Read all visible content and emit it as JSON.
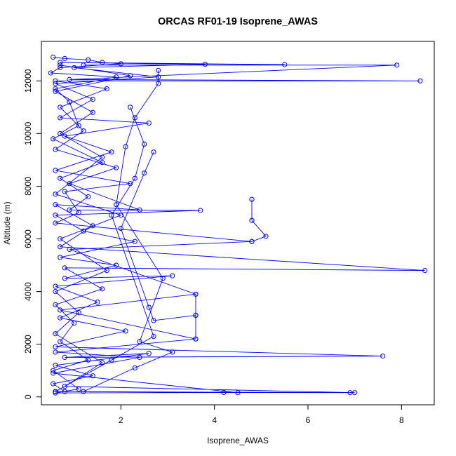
{
  "chart_data": {
    "type": "line",
    "title": "ORCAS RF01-19 Isoprene_AWAS",
    "xlabel": "Isoprene_AWAS",
    "ylabel": "Altitude (m)",
    "xlim": [
      0.3,
      8.7
    ],
    "ylim": [
      -300,
      13500
    ],
    "xticks": [
      2,
      4,
      6,
      8
    ],
    "yticks": [
      0,
      2000,
      4000,
      6000,
      8000,
      10000,
      12000
    ],
    "grid": false,
    "legend": "none",
    "color": "#0000ff",
    "series": [
      {
        "points": [
          [
            0.55,
            12900
          ],
          [
            0.8,
            12850
          ],
          [
            1.3,
            12800
          ],
          [
            1.6,
            12700
          ],
          [
            2.0,
            12650
          ],
          [
            0.7,
            12500
          ],
          [
            0.5,
            12300
          ],
          [
            1.9,
            12150
          ],
          [
            0.6,
            11700
          ],
          [
            0.9,
            11200
          ],
          [
            1.1,
            10300
          ],
          [
            0.55,
            9800
          ],
          [
            1.6,
            8900
          ],
          [
            0.7,
            8300
          ],
          [
            1.3,
            7600
          ],
          [
            0.9,
            7100
          ],
          [
            3.7,
            7080
          ],
          [
            0.6,
            6900
          ],
          [
            1.2,
            6300
          ],
          [
            2.3,
            5900
          ],
          [
            0.7,
            5300
          ],
          [
            1.9,
            5000
          ],
          [
            0.8,
            4500
          ],
          [
            3.1,
            4600
          ],
          [
            0.6,
            4200
          ],
          [
            1.5,
            3600
          ],
          [
            0.7,
            3000
          ],
          [
            2.1,
            2500
          ],
          [
            0.6,
            1900
          ],
          [
            7.6,
            1550
          ],
          [
            0.8,
            1500
          ],
          [
            2.6,
            1650
          ],
          [
            0.6,
            1200
          ],
          [
            1.4,
            800
          ],
          [
            0.55,
            500
          ],
          [
            0.8,
            200
          ],
          [
            6.9,
            160
          ],
          [
            4.2,
            170
          ],
          [
            0.6,
            150
          ],
          [
            1.1,
            300
          ],
          [
            0.55,
            1000
          ],
          [
            1.3,
            1400
          ],
          [
            0.7,
            2100
          ],
          [
            1.0,
            2800
          ],
          [
            0.6,
            3500
          ],
          [
            1.6,
            4100
          ],
          [
            0.8,
            4900
          ],
          [
            8.5,
            4800
          ],
          [
            0.7,
            5700
          ],
          [
            1.4,
            6500
          ],
          [
            0.6,
            7300
          ],
          [
            2.4,
            7100
          ],
          [
            0.9,
            8100
          ],
          [
            1.9,
            8700
          ],
          [
            0.6,
            9400
          ],
          [
            1.2,
            10100
          ],
          [
            0.7,
            11000
          ],
          [
            1.7,
            11700
          ],
          [
            0.6,
            12000
          ],
          [
            8.4,
            12000
          ],
          [
            0.9,
            12050
          ],
          [
            7.9,
            12600
          ],
          [
            1.2,
            12600
          ],
          [
            5.5,
            12620
          ],
          [
            0.7,
            12700
          ],
          [
            3.8,
            12630
          ],
          [
            1.0,
            12500
          ],
          [
            2.8,
            12150
          ],
          [
            0.6,
            11900
          ],
          [
            1.4,
            11300
          ],
          [
            0.7,
            10600
          ],
          [
            2.6,
            10400
          ],
          [
            0.8,
            9900
          ],
          [
            1.8,
            9300
          ],
          [
            0.6,
            8600
          ],
          [
            2.2,
            8100
          ],
          [
            0.8,
            7800
          ],
          [
            1.1,
            7000
          ],
          [
            0.6,
            6600
          ],
          [
            4.8,
            5900
          ],
          [
            0.9,
            5600
          ],
          [
            3.6,
            3900
          ],
          [
            0.7,
            3300
          ],
          [
            3.6,
            2200
          ],
          [
            0.6,
            1700
          ],
          [
            2.4,
            1500
          ],
          [
            0.55,
            900
          ],
          [
            4.5,
            160
          ],
          [
            0.6,
            200
          ],
          [
            7.0,
            160
          ],
          [
            0.8,
            400
          ],
          [
            1.6,
            1300
          ],
          [
            0.6,
            2400
          ],
          [
            1.1,
            3200
          ],
          [
            0.6,
            4000
          ],
          [
            1.7,
            4800
          ],
          [
            0.7,
            6000
          ],
          [
            2.0,
            6900
          ],
          [
            0.6,
            7700
          ],
          [
            1.6,
            9100
          ],
          [
            0.7,
            10000
          ],
          [
            1.4,
            10800
          ],
          [
            0.6,
            11600
          ],
          [
            2.2,
            12200
          ],
          [
            0.7,
            12600
          ]
        ]
      },
      {
        "points": [
          [
            4.8,
            7500
          ],
          [
            4.8,
            6700
          ],
          [
            5.1,
            6100
          ],
          [
            4.8,
            5900
          ]
        ]
      },
      {
        "points": [
          [
            3.6,
            3900
          ],
          [
            3.6,
            3100
          ],
          [
            3.6,
            2200
          ]
        ]
      },
      {
        "points": [
          [
            2.7,
            9300
          ],
          [
            2.5,
            8500
          ],
          [
            2.0,
            6400
          ],
          [
            2.6,
            3400
          ],
          [
            2.7,
            2900
          ],
          [
            3.6,
            3100
          ]
        ]
      },
      {
        "points": [
          [
            2.2,
            11000
          ],
          [
            2.5,
            9600
          ],
          [
            2.3,
            8300
          ],
          [
            1.8,
            6900
          ],
          [
            2.7,
            2300
          ],
          [
            1.8,
            1400
          ],
          [
            0.6,
            200
          ]
        ]
      },
      {
        "points": [
          [
            2.8,
            12400
          ],
          [
            2.8,
            11900
          ],
          [
            2.3,
            10600
          ],
          [
            2.1,
            9500
          ],
          [
            1.9,
            7300
          ],
          [
            2.9,
            4500
          ],
          [
            2.4,
            2100
          ],
          [
            3.1,
            1700
          ],
          [
            2.3,
            1100
          ],
          [
            1.2,
            200
          ]
        ]
      }
    ]
  }
}
